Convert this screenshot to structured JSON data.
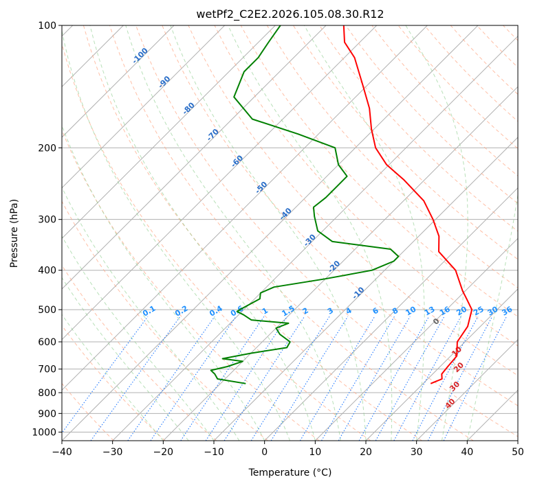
{
  "chart_data": {
    "type": "line",
    "title": "wetPf2_C2E2.2026.105.08.30.R12",
    "xlabel": "Temperature (°C)",
    "ylabel": "Pressure (hPa)",
    "xlim": [
      -40,
      50
    ],
    "ylim": [
      1050,
      100
    ],
    "x_ticks": [
      -40,
      -30,
      -20,
      -10,
      0,
      10,
      20,
      30,
      40,
      50
    ],
    "y_ticks": [
      100,
      200,
      300,
      400,
      500,
      600,
      700,
      800,
      900,
      1000
    ],
    "x_tick_labels": [
      "−40",
      "−30",
      "−20",
      "−10",
      "0",
      "10",
      "20",
      "30",
      "40",
      "50"
    ],
    "y_tick_labels": [
      "100",
      "200",
      "300",
      "400",
      "500",
      "600",
      "700",
      "800",
      "900",
      "1000"
    ],
    "skew": 45,
    "series": [
      {
        "name": "temperature",
        "color": "#ff0000",
        "points": [
          [
            760,
            21.5
          ],
          [
            740,
            22.8
          ],
          [
            720,
            21.8
          ],
          [
            690,
            21.5
          ],
          [
            650,
            21.2
          ],
          [
            600,
            18.5
          ],
          [
            550,
            17.5
          ],
          [
            500,
            15.0
          ],
          [
            470,
            11.8
          ],
          [
            450,
            9.5
          ],
          [
            400,
            4.0
          ],
          [
            360,
            -3.0
          ],
          [
            330,
            -6.0
          ],
          [
            300,
            -10.5
          ],
          [
            270,
            -16.0
          ],
          [
            240,
            -24.0
          ],
          [
            220,
            -30.5
          ],
          [
            200,
            -36.0
          ],
          [
            180,
            -40.5
          ],
          [
            160,
            -45.0
          ],
          [
            140,
            -51.0
          ],
          [
            120,
            -58.0
          ],
          [
            110,
            -63.0
          ],
          [
            100,
            -66.5
          ]
        ]
      },
      {
        "name": "dewpoint",
        "color": "#008000",
        "points": [
          [
            760,
            -15.0
          ],
          [
            740,
            -21.5
          ],
          [
            720,
            -23.0
          ],
          [
            705,
            -24.5
          ],
          [
            690,
            -22.0
          ],
          [
            670,
            -20.0
          ],
          [
            660,
            -24.5
          ],
          [
            640,
            -20.0
          ],
          [
            620,
            -14.0
          ],
          [
            600,
            -14.5
          ],
          [
            575,
            -18.0
          ],
          [
            555,
            -20.0
          ],
          [
            540,
            -18.5
          ],
          [
            530,
            -26.5
          ],
          [
            515,
            -29.0
          ],
          [
            505,
            -31.0
          ],
          [
            495,
            -30.5
          ],
          [
            470,
            -29.0
          ],
          [
            455,
            -30.0
          ],
          [
            440,
            -28.5
          ],
          [
            420,
            -20.0
          ],
          [
            400,
            -12.5
          ],
          [
            380,
            -10.0
          ],
          [
            370,
            -10.0
          ],
          [
            355,
            -13.0
          ],
          [
            340,
            -26.0
          ],
          [
            320,
            -31.0
          ],
          [
            295,
            -34.5
          ],
          [
            280,
            -36.5
          ],
          [
            265,
            -36.0
          ],
          [
            250,
            -36.0
          ],
          [
            235,
            -36.0
          ],
          [
            220,
            -40.0
          ],
          [
            200,
            -44.0
          ],
          [
            185,
            -54.0
          ],
          [
            170,
            -66.0
          ],
          [
            150,
            -74.0
          ],
          [
            130,
            -77.0
          ],
          [
            120,
            -77.0
          ],
          [
            110,
            -78.0
          ],
          [
            100,
            -79.0
          ]
        ]
      }
    ],
    "dry_adiabat_labels": [
      "-100",
      "-90",
      "-80",
      "-70",
      "-60",
      "-50",
      "-40",
      "-30",
      "-20",
      "-10",
      "0",
      "10",
      "20",
      "30",
      "40"
    ],
    "mixing_ratio_labels": [
      "0.1",
      "0.2",
      "0.4",
      "0.6",
      "1",
      "1.5",
      "2",
      "3",
      "4",
      "6",
      "8",
      "10",
      "13",
      "16",
      "20",
      "25",
      "30",
      "36"
    ],
    "colors": {
      "isobar": "#b0b0b0",
      "isotherm": "#b0b0b0",
      "dry_adiabat": "#ffaa88",
      "moist_adiabat": "#88cc88",
      "mixing_ratio": "#1f77ff",
      "label_blue": "#2a6ec8",
      "label_mr": "#1e90ff",
      "label_red": "#d62728",
      "label_gray": "#666666"
    }
  }
}
